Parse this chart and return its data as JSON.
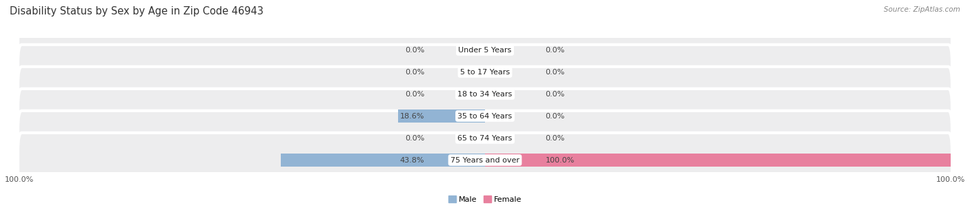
{
  "title": "Disability Status by Sex by Age in Zip Code 46943",
  "source": "Source: ZipAtlas.com",
  "categories": [
    "Under 5 Years",
    "5 to 17 Years",
    "18 to 34 Years",
    "35 to 64 Years",
    "65 to 74 Years",
    "75 Years and over"
  ],
  "male_values": [
    0.0,
    0.0,
    0.0,
    18.6,
    0.0,
    43.8
  ],
  "female_values": [
    0.0,
    0.0,
    0.0,
    0.0,
    0.0,
    100.0
  ],
  "male_color": "#92b4d4",
  "female_color": "#e8809e",
  "row_bg_color": "#ededee",
  "max_value": 100.0,
  "title_fontsize": 10.5,
  "label_fontsize": 8.0,
  "tick_fontsize": 8.0,
  "value_fontsize": 8.0
}
